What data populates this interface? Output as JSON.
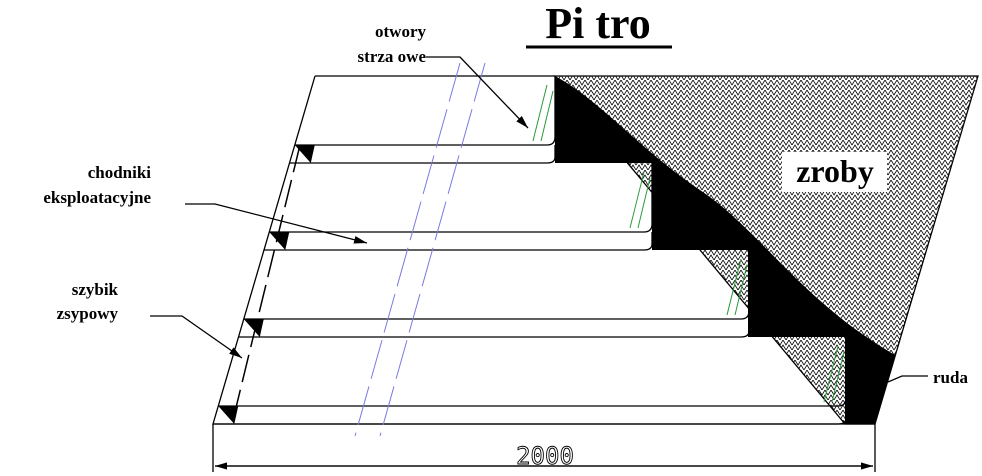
{
  "title": "Pi tro",
  "labels": [
    {
      "lines": [
        "otwory",
        "strza owe"
      ]
    },
    {
      "lines": [
        "chodniki",
        "eksploatacyjne"
      ]
    },
    {
      "lines": [
        "szybik",
        "zsypowy"
      ]
    }
  ],
  "regions": {
    "goaf": "zroby",
    "ore": "ruda"
  },
  "dimension": {
    "label": "2000"
  }
}
